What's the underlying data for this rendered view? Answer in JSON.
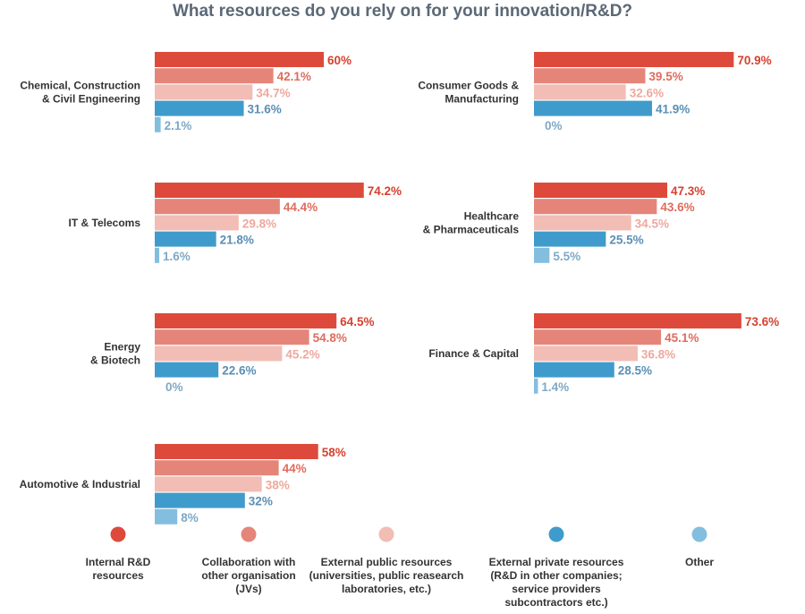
{
  "chart_data": {
    "type": "bar",
    "title": "What resources do you rely on for your innovation/R&D?",
    "value_suffix": "%",
    "series": [
      {
        "name": "Internal R&D resources",
        "color": "#dd4a3b"
      },
      {
        "name": "Collaboration with other organisation (JVs)",
        "color": "#e5857a"
      },
      {
        "name": "External public resources (universities, public reasearch laboratories, etc.)",
        "color": "#f1bdb5"
      },
      {
        "name": "External private resources (R&D in other companies; service providers subcontractors etc.)",
        "color": "#3f9bcb"
      },
      {
        "name": "Other",
        "color": "#83bedf"
      }
    ],
    "value_label_colors": [
      "#d6412f",
      "#de6c5d",
      "#eea89d",
      "#5a8fb5",
      "#7fa9c6"
    ],
    "categories": [
      {
        "name": "Chemical, Construction & Civil Engineering",
        "lines": [
          "Chemical, Construction",
          "& Civil Engineering"
        ],
        "values": [
          60,
          42.1,
          34.7,
          31.6,
          2.1
        ],
        "labels": [
          "60",
          "42.1",
          "34.7",
          "31.6",
          "2.1"
        ]
      },
      {
        "name": "Consumer Goods & Manufacturing",
        "lines": [
          "Consumer Goods &",
          "Manufacturing"
        ],
        "values": [
          70.9,
          39.5,
          32.6,
          41.9,
          0
        ],
        "labels": [
          "70.9",
          "39.5",
          "32.6",
          "41.9",
          "0"
        ]
      },
      {
        "name": "IT & Telecoms",
        "lines": [
          "IT & Telecoms"
        ],
        "values": [
          74.2,
          44.4,
          29.8,
          21.8,
          1.6
        ],
        "labels": [
          "74.2",
          "44.4",
          "29.8",
          "21.8",
          "1.6"
        ]
      },
      {
        "name": "Healthcare & Pharmaceuticals",
        "lines": [
          "Healthcare",
          "& Pharmaceuticals"
        ],
        "values": [
          47.3,
          43.6,
          34.5,
          25.5,
          5.5
        ],
        "labels": [
          "47.3",
          "43.6",
          "34.5",
          "25.5",
          "5.5"
        ]
      },
      {
        "name": "Energy & Biotech",
        "lines": [
          "Energy",
          "& Biotech"
        ],
        "values": [
          64.5,
          54.8,
          45.2,
          22.6,
          0
        ],
        "labels": [
          "64.5",
          "54.8",
          "45.2",
          "22.6",
          "0"
        ]
      },
      {
        "name": "Finance & Capital",
        "lines": [
          "Finance & Capital"
        ],
        "values": [
          73.6,
          45.1,
          36.8,
          28.5,
          1.4
        ],
        "labels": [
          "73.6",
          "45.1",
          "36.8",
          "28.5",
          "1.4"
        ]
      },
      {
        "name": "Automotive & Industrial",
        "lines": [
          "Automotive & Industrial"
        ],
        "values": [
          58,
          44,
          38,
          32,
          8
        ],
        "labels": [
          "58",
          "44",
          "38",
          "32",
          "8"
        ]
      }
    ],
    "legend": {
      "position": "bottom",
      "entries": [
        {
          "lines": [
            "Internal R&D",
            "resources"
          ]
        },
        {
          "lines": [
            "Collaboration with",
            "other organisation",
            "(JVs)"
          ]
        },
        {
          "lines": [
            "External public resources",
            "(universities, public reasearch",
            "laboratories, etc.)"
          ]
        },
        {
          "lines": [
            "External private resources",
            "(R&D in other companies;",
            "service providers",
            "subcontractors etc.)"
          ]
        },
        {
          "lines": [
            "Other"
          ]
        }
      ]
    },
    "grid": false
  }
}
